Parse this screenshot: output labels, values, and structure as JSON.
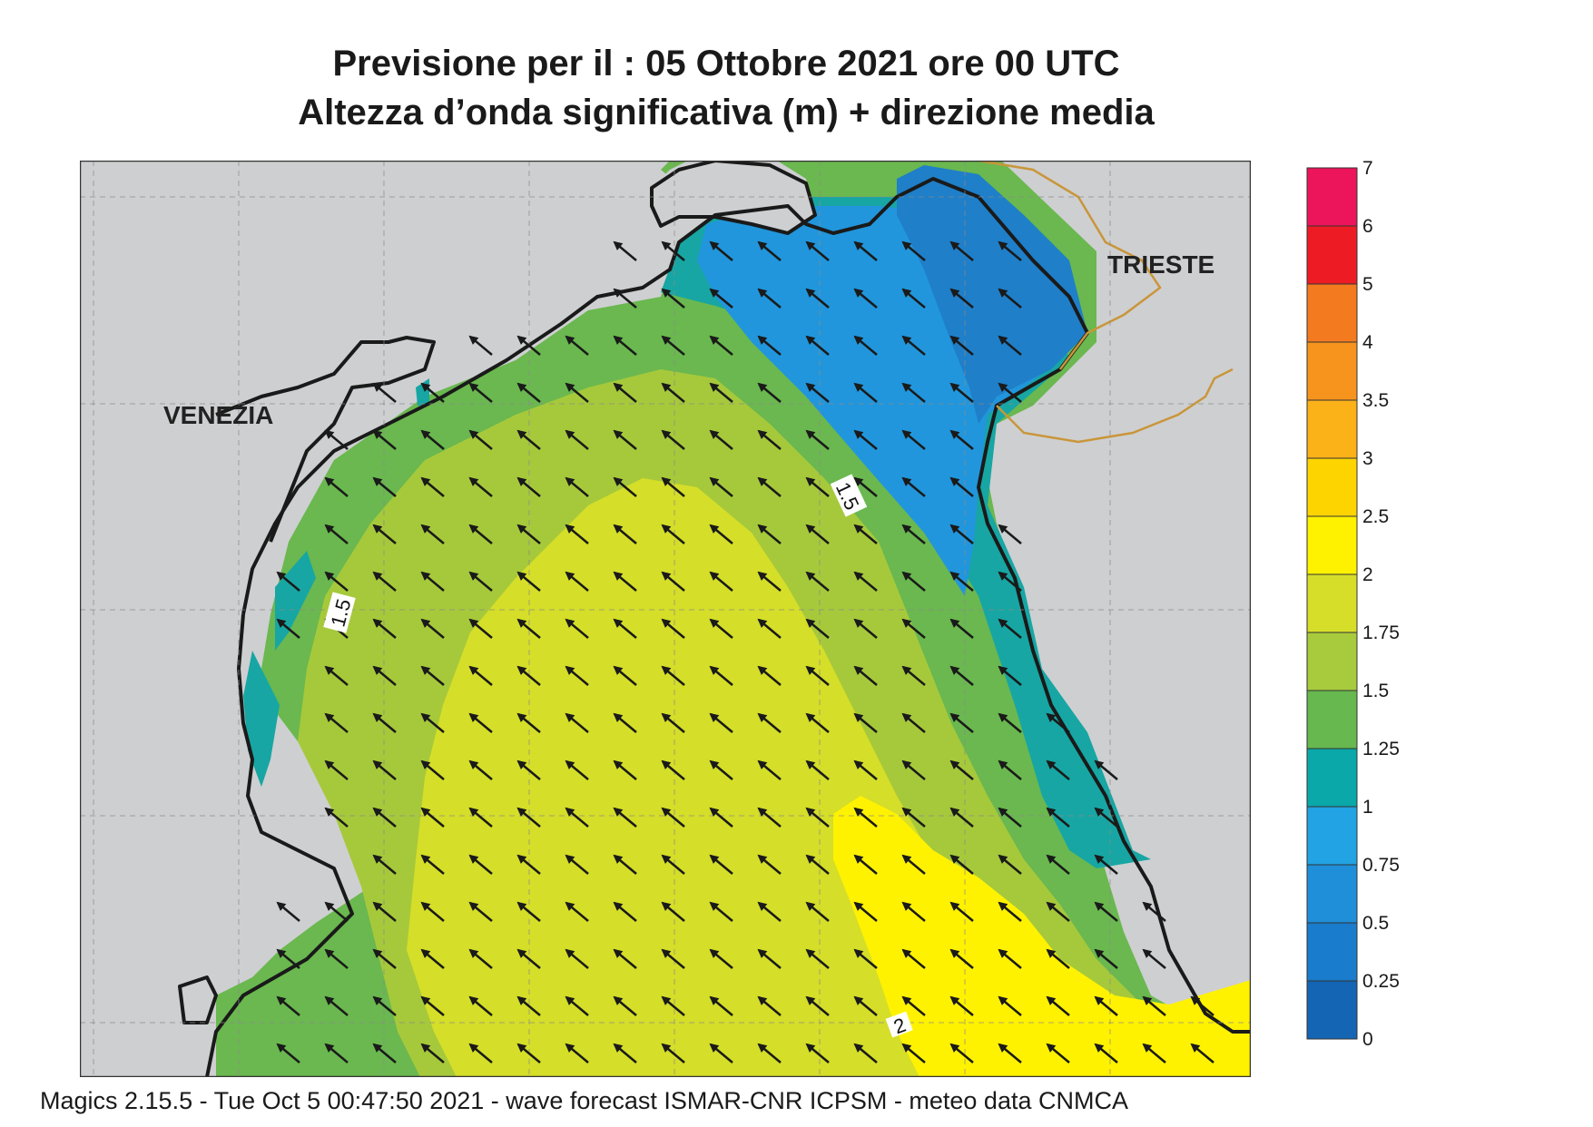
{
  "title": {
    "line1": "Previsione per il  :  05  Ottobre  2021   ore 00 UTC",
    "line2": "Altezza d’onda significativa (m) + direzione media"
  },
  "map": {
    "cities": [
      {
        "name": "VENEZIA"
      },
      {
        "name": "TRIESTE"
      }
    ],
    "contour_labels": [
      "1.5",
      "1.5",
      "2"
    ],
    "arrow_direction": "north-west",
    "colors": {
      "land": "#cecfd1",
      "c_0_25": "#1f6fbd",
      "c_0_5": "#1a82cf",
      "c_0_75": "#2196dc",
      "c_1": "#17a6a3",
      "c_1_25": "#6ab84f",
      "c_1_5": "#a6c93b",
      "c_1_75": "#d5de28",
      "c_2": "#fff200",
      "border": "#c9963a"
    }
  },
  "colorbar": {
    "levels": [
      "0",
      "0.25",
      "0.5",
      "0.75",
      "1",
      "1.25",
      "1.5",
      "1.75",
      "2",
      "2.5",
      "3",
      "3.5",
      "4",
      "5",
      "6",
      "7"
    ],
    "colors": [
      "#1565b5",
      "#1a7ccc",
      "#1f8fd9",
      "#22a3e3",
      "#0aa8a8",
      "#66b84f",
      "#a8cb3d",
      "#d6de2a",
      "#fff200",
      "#fed400",
      "#fbb118",
      "#f7941d",
      "#f47a20",
      "#ed1c24",
      "#ec145a"
    ]
  },
  "footer": "Magics 2.15.5 - Tue Oct  5 00:47:50 2021 - wave forecast  ISMAR-CNR  ICPSM - meteo data   CNMCA"
}
